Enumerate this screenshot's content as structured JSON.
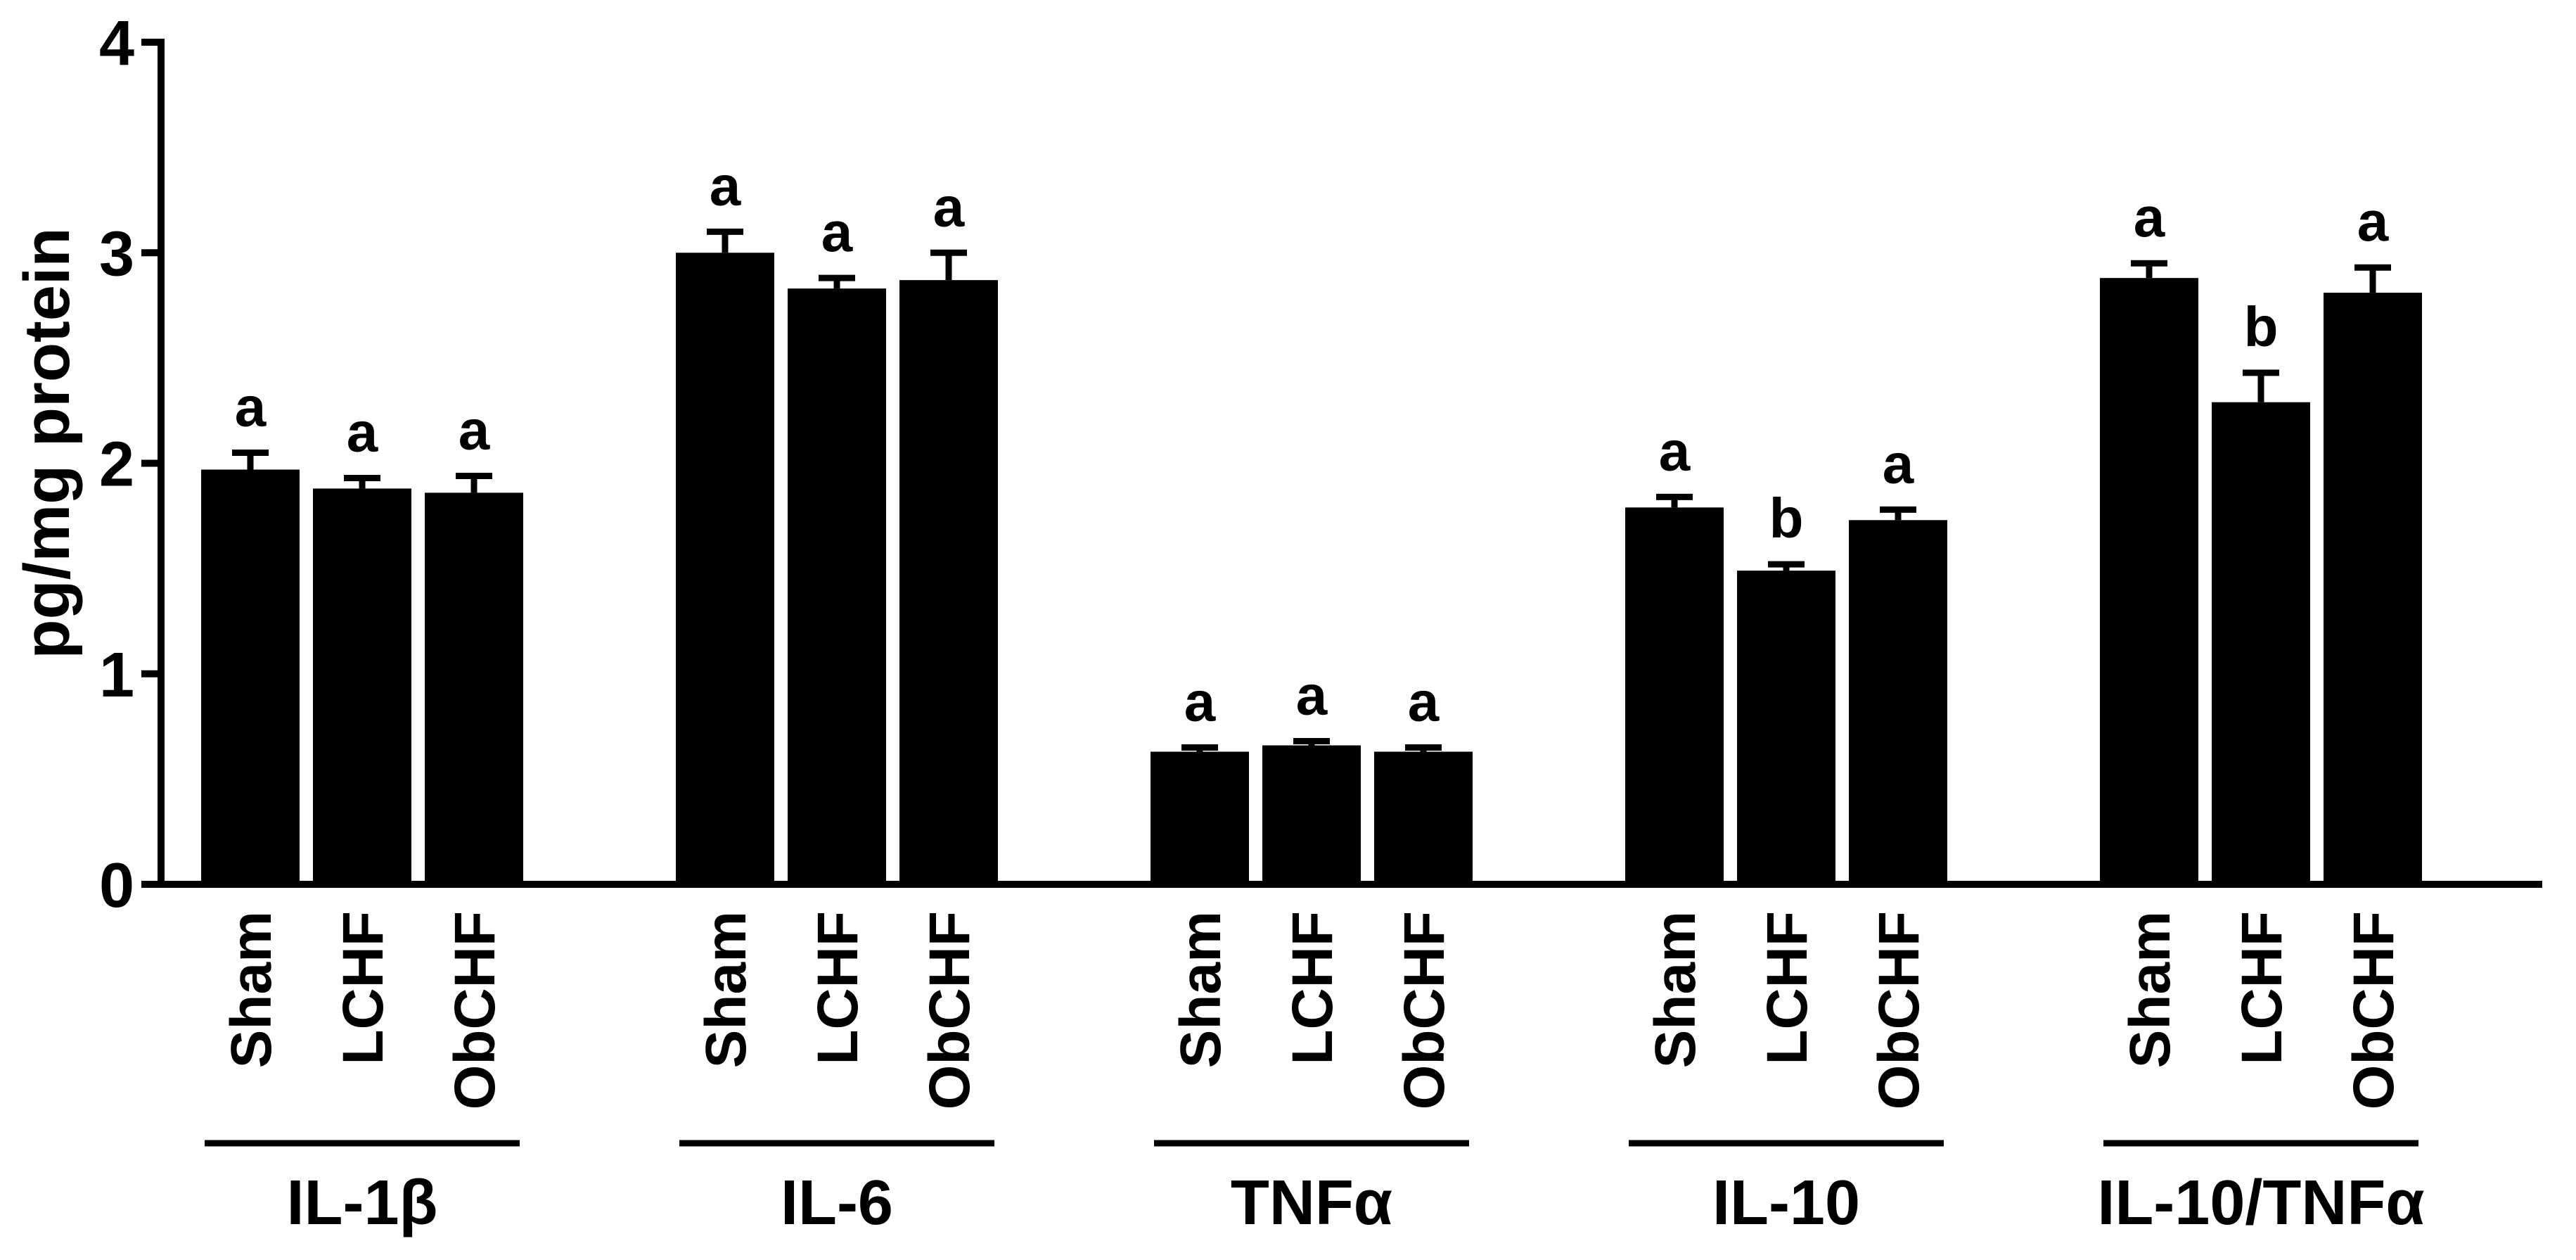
{
  "chart_data": {
    "type": "bar",
    "ylabel": "pg/mg protein",
    "ylim": [
      0,
      4
    ],
    "yticks": [
      "0",
      "1",
      "2",
      "3",
      "4"
    ],
    "grid": false,
    "legend": "none",
    "bar_color": "#000000",
    "groups": [
      {
        "name": "IL-1β",
        "bars": [
          {
            "label": "Sham",
            "value": 1.97,
            "error": 0.08,
            "letter": "a"
          },
          {
            "label": "LCHF",
            "value": 1.88,
            "error": 0.05,
            "letter": "a"
          },
          {
            "label": "ObCHF",
            "value": 1.86,
            "error": 0.08,
            "letter": "a"
          }
        ]
      },
      {
        "name": "IL-6",
        "bars": [
          {
            "label": "Sham",
            "value": 3.0,
            "error": 0.1,
            "letter": "a"
          },
          {
            "label": "LCHF",
            "value": 2.83,
            "error": 0.05,
            "letter": "a"
          },
          {
            "label": "ObCHF",
            "value": 2.87,
            "error": 0.13,
            "letter": "a"
          }
        ]
      },
      {
        "name": "TNFα",
        "bars": [
          {
            "label": "Sham",
            "value": 0.63,
            "error": 0.02,
            "letter": "a"
          },
          {
            "label": "LCHF",
            "value": 0.66,
            "error": 0.02,
            "letter": "a"
          },
          {
            "label": "ObCHF",
            "value": 0.63,
            "error": 0.02,
            "letter": "a"
          }
        ]
      },
      {
        "name": "IL-10",
        "bars": [
          {
            "label": "Sham",
            "value": 1.79,
            "error": 0.05,
            "letter": "a"
          },
          {
            "label": "LCHF",
            "value": 1.49,
            "error": 0.03,
            "letter": "b"
          },
          {
            "label": "ObCHF",
            "value": 1.73,
            "error": 0.05,
            "letter": "a"
          }
        ]
      },
      {
        "name": "IL-10/TNFα",
        "bars": [
          {
            "label": "Sham",
            "value": 2.88,
            "error": 0.07,
            "letter": "a"
          },
          {
            "label": "LCHF",
            "value": 2.29,
            "error": 0.14,
            "letter": "b"
          },
          {
            "label": "ObCHF",
            "value": 2.81,
            "error": 0.12,
            "letter": "a"
          }
        ]
      }
    ]
  }
}
